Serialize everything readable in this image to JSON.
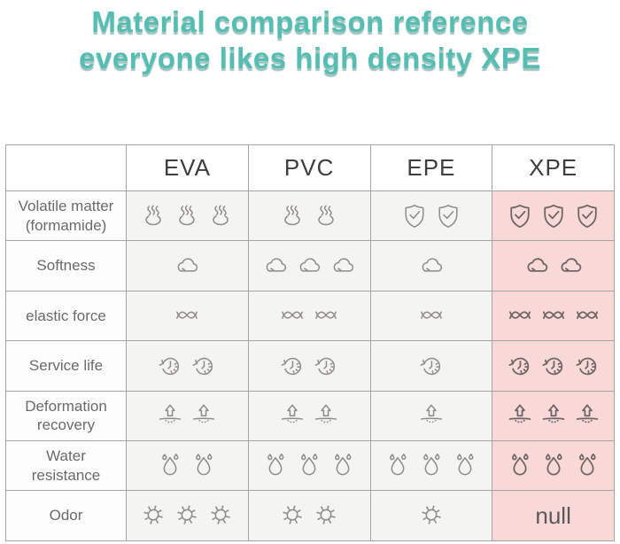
{
  "title": {
    "line1": "Material comparison reference",
    "line2": "everyone likes high density XPE",
    "color": "#56bdb2"
  },
  "chart_data": {
    "type": "table",
    "title": "Material comparison reference everyone likes high density XPE",
    "row_header": "",
    "columns": [
      "EVA",
      "PVC",
      "EPE",
      "XPE"
    ],
    "highlight_column": "XPE",
    "rating_scale": "icon count 1-3, more icons = stronger attribute",
    "rows": [
      {
        "label": "Volatile matter (formamide)",
        "cells": [
          {
            "icon": "steam-icon",
            "count": 3
          },
          {
            "icon": "steam-icon",
            "count": 2
          },
          {
            "icon": "shield-check-icon",
            "count": 2
          },
          {
            "icon": "shield-check-icon",
            "count": 3
          }
        ]
      },
      {
        "label": "Softness",
        "cells": [
          {
            "icon": "cloud-icon",
            "count": 1
          },
          {
            "icon": "cloud-icon",
            "count": 3
          },
          {
            "icon": "cloud-icon",
            "count": 1
          },
          {
            "icon": "cloud-icon",
            "count": 2
          }
        ]
      },
      {
        "label": "elastic force",
        "cells": [
          {
            "icon": "spring-wave-icon",
            "count": 1
          },
          {
            "icon": "spring-wave-icon",
            "count": 2
          },
          {
            "icon": "spring-wave-icon",
            "count": 1
          },
          {
            "icon": "spring-wave-icon",
            "count": 3
          }
        ]
      },
      {
        "label": "Service life",
        "cells": [
          {
            "icon": "clock-refresh-icon",
            "count": 2
          },
          {
            "icon": "clock-refresh-icon",
            "count": 2
          },
          {
            "icon": "clock-refresh-icon",
            "count": 1
          },
          {
            "icon": "clock-refresh-icon",
            "count": 3
          }
        ]
      },
      {
        "label": "Deformation recovery",
        "cells": [
          {
            "icon": "rebound-arrow-icon",
            "count": 2
          },
          {
            "icon": "rebound-arrow-icon",
            "count": 2
          },
          {
            "icon": "rebound-arrow-icon",
            "count": 1
          },
          {
            "icon": "rebound-arrow-icon",
            "count": 3
          }
        ]
      },
      {
        "label": "Water resistance",
        "cells": [
          {
            "icon": "water-drop-icon",
            "count": 2
          },
          {
            "icon": "water-drop-icon",
            "count": 3
          },
          {
            "icon": "water-drop-icon",
            "count": 3
          },
          {
            "icon": "water-drop-icon",
            "count": 3
          }
        ]
      },
      {
        "label": "Odor",
        "cells": [
          {
            "icon": "germ-icon",
            "count": 3
          },
          {
            "icon": "germ-icon",
            "count": 2
          },
          {
            "icon": "germ-icon",
            "count": 1
          },
          {
            "text": "null"
          }
        ]
      }
    ],
    "colors": {
      "highlight_bg": "#f9d8d8",
      "cell_bg": "#f4f4f2",
      "label_bg": "#fdfdfd",
      "header_bg": "#ffffff",
      "border": "#a3a3a3",
      "icon": "#8f8c8a",
      "icon_highlight": "#6e6662",
      "header_text": "#3e3e3e",
      "label_text": "#6a6a6a",
      "null_text": "#5a5a5a"
    }
  }
}
